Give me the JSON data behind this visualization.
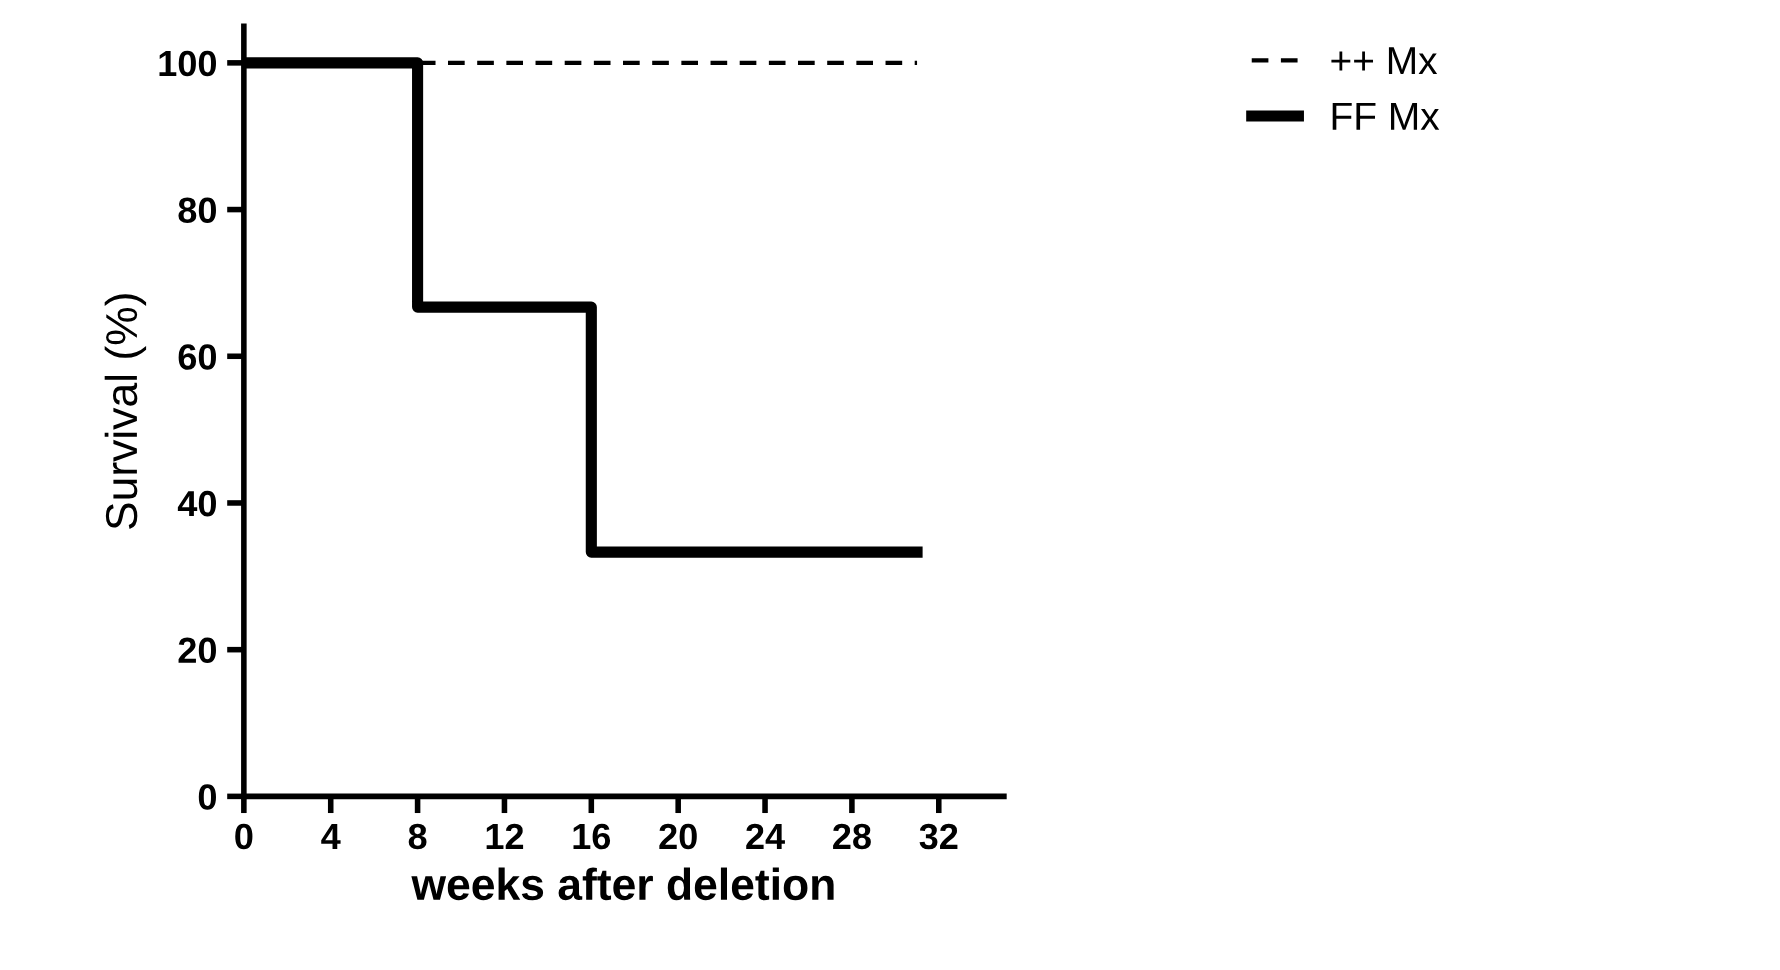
{
  "chart_data": {
    "type": "step",
    "xlabel": "weeks after deletion",
    "ylabel": "Survival (%)",
    "xlim": [
      0,
      35
    ],
    "xticks": [
      0,
      4,
      8,
      12,
      16,
      20,
      24,
      28,
      32
    ],
    "ylim": [
      0,
      105
    ],
    "yticks": [
      0,
      20,
      40,
      60,
      80,
      100
    ],
    "grid": false,
    "legend": "top right",
    "marker": "none",
    "series": [
      {
        "name": "++ Mx",
        "color": "#000000",
        "line_style": "dashed",
        "x": [
          0,
          8,
          16,
          31
        ],
        "values": [
          100,
          100,
          100,
          100
        ]
      },
      {
        "name": "FF Mx",
        "color": "#000000",
        "line_style": "solid",
        "x": [
          0,
          8,
          16,
          31
        ],
        "values": [
          100,
          66.7,
          33.3,
          33.3
        ]
      }
    ]
  }
}
